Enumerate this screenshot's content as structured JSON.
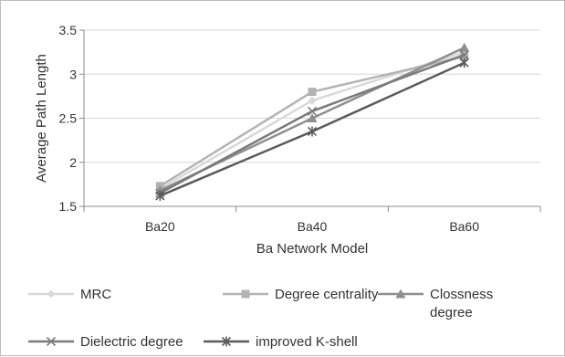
{
  "chart_data": {
    "type": "line",
    "title": "",
    "xlabel": "Ba Network Model",
    "ylabel": "Average Path Length",
    "categories": [
      "Ba20",
      "Ba40",
      "Ba60"
    ],
    "ylim": [
      1.5,
      3.5
    ],
    "yticks": [
      "1.5",
      "2",
      "2.5",
      "3",
      "3.5"
    ],
    "grid": true,
    "legend_position": "bottom",
    "series": [
      {
        "name": "MRC",
        "values": [
          1.7,
          2.7,
          3.25
        ],
        "color": "#d9d9d9",
        "marker": "diamond"
      },
      {
        "name": "Degree centrality",
        "values": [
          1.73,
          2.8,
          3.2
        ],
        "color": "#b3b3b3",
        "marker": "square"
      },
      {
        "name": "Clossness degree",
        "values": [
          1.68,
          2.5,
          3.3
        ],
        "color": "#8f8f8f",
        "marker": "triangle"
      },
      {
        "name": "Dielectric degree",
        "values": [
          1.65,
          2.58,
          3.22
        ],
        "color": "#7a7a7a",
        "marker": "x"
      },
      {
        "name": "improved K-shell",
        "values": [
          1.62,
          2.35,
          3.13
        ],
        "color": "#5a5a5a",
        "marker": "star"
      }
    ]
  }
}
